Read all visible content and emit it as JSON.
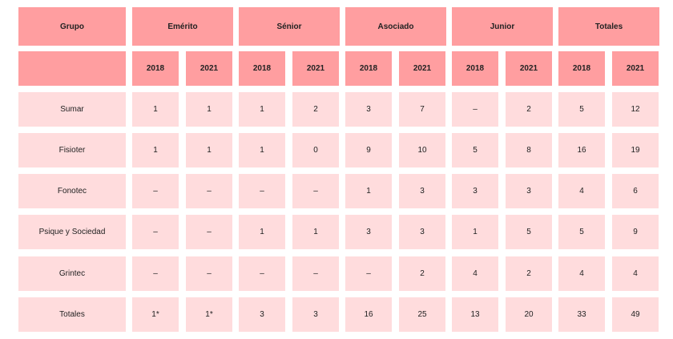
{
  "colors": {
    "header": "#ff9ea0",
    "body": "#ffdcdd"
  },
  "header": {
    "group": "Grupo",
    "categories": [
      "Emérito",
      "Sénior",
      "Asociado",
      "Junior",
      "Totales"
    ],
    "years": [
      "2018",
      "2021",
      "2018",
      "2021",
      "2018",
      "2021",
      "2018",
      "2021",
      "2018",
      "2021"
    ]
  },
  "rows": [
    {
      "name": "Sumar",
      "values": [
        "1",
        "1",
        "1",
        "2",
        "3",
        "7",
        "–",
        "2",
        "5",
        "12"
      ]
    },
    {
      "name": "Fisioter",
      "values": [
        "1",
        "1",
        "1",
        "0",
        "9",
        "10",
        "5",
        "8",
        "16",
        "19"
      ]
    },
    {
      "name": "Fonotec",
      "values": [
        "–",
        "–",
        "–",
        "–",
        "1",
        "3",
        "3",
        "3",
        "4",
        "6"
      ]
    },
    {
      "name": "Psique y Sociedad",
      "values": [
        "–",
        "–",
        "1",
        "1",
        "3",
        "3",
        "1",
        "5",
        "5",
        "9"
      ]
    },
    {
      "name": "Grintec",
      "values": [
        "–",
        "–",
        "–",
        "–",
        "–",
        "2",
        "4",
        "2",
        "4",
        "4"
      ]
    },
    {
      "name": "Totales",
      "values": [
        "1*",
        "1*",
        "3",
        "3",
        "16",
        "25",
        "13",
        "20",
        "33",
        "49"
      ]
    }
  ]
}
